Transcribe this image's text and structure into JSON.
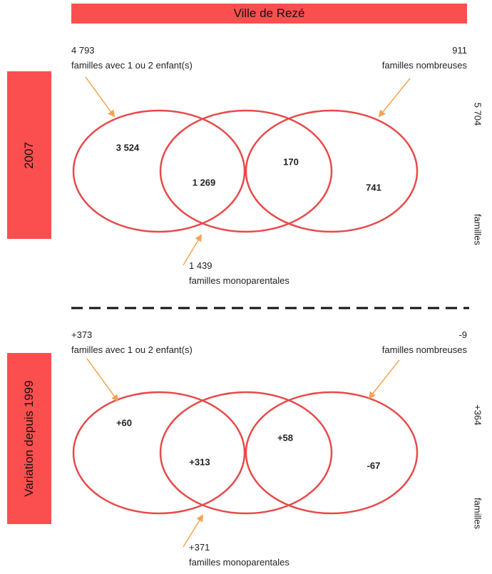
{
  "title": "Ville de Rezé",
  "colors": {
    "accent": "#fb4f4f",
    "stroke": "#e84a4a",
    "arrow": "#f5a352",
    "divider": "#111111"
  },
  "panels": [
    {
      "tab_label": "2007",
      "top_left": {
        "value": "4 793",
        "label": "familles avec 1 ou 2 enfant(s)"
      },
      "top_right": {
        "value": "911",
        "label": "familles nombreuses"
      },
      "bottom": {
        "value": "1 439",
        "label": "familles monoparentales"
      },
      "regions": {
        "left_only": "3 524",
        "left_middle": "1 269",
        "middle_right": "170",
        "right_only": "741"
      },
      "total": {
        "value": "5 704",
        "label": "familles"
      }
    },
    {
      "tab_label": "Variation depuis 1999",
      "top_left": {
        "value": "+373",
        "label": "familles avec 1 ou 2 enfant(s)"
      },
      "top_right": {
        "value": "-9",
        "label": "familles nombreuses"
      },
      "bottom": {
        "value": "+371",
        "label": "familles monoparentales"
      },
      "regions": {
        "left_only": "+60",
        "left_middle": "+313",
        "middle_right": "+58",
        "right_only": "-67"
      },
      "total": {
        "value": "+364",
        "label": "familles"
      }
    }
  ]
}
